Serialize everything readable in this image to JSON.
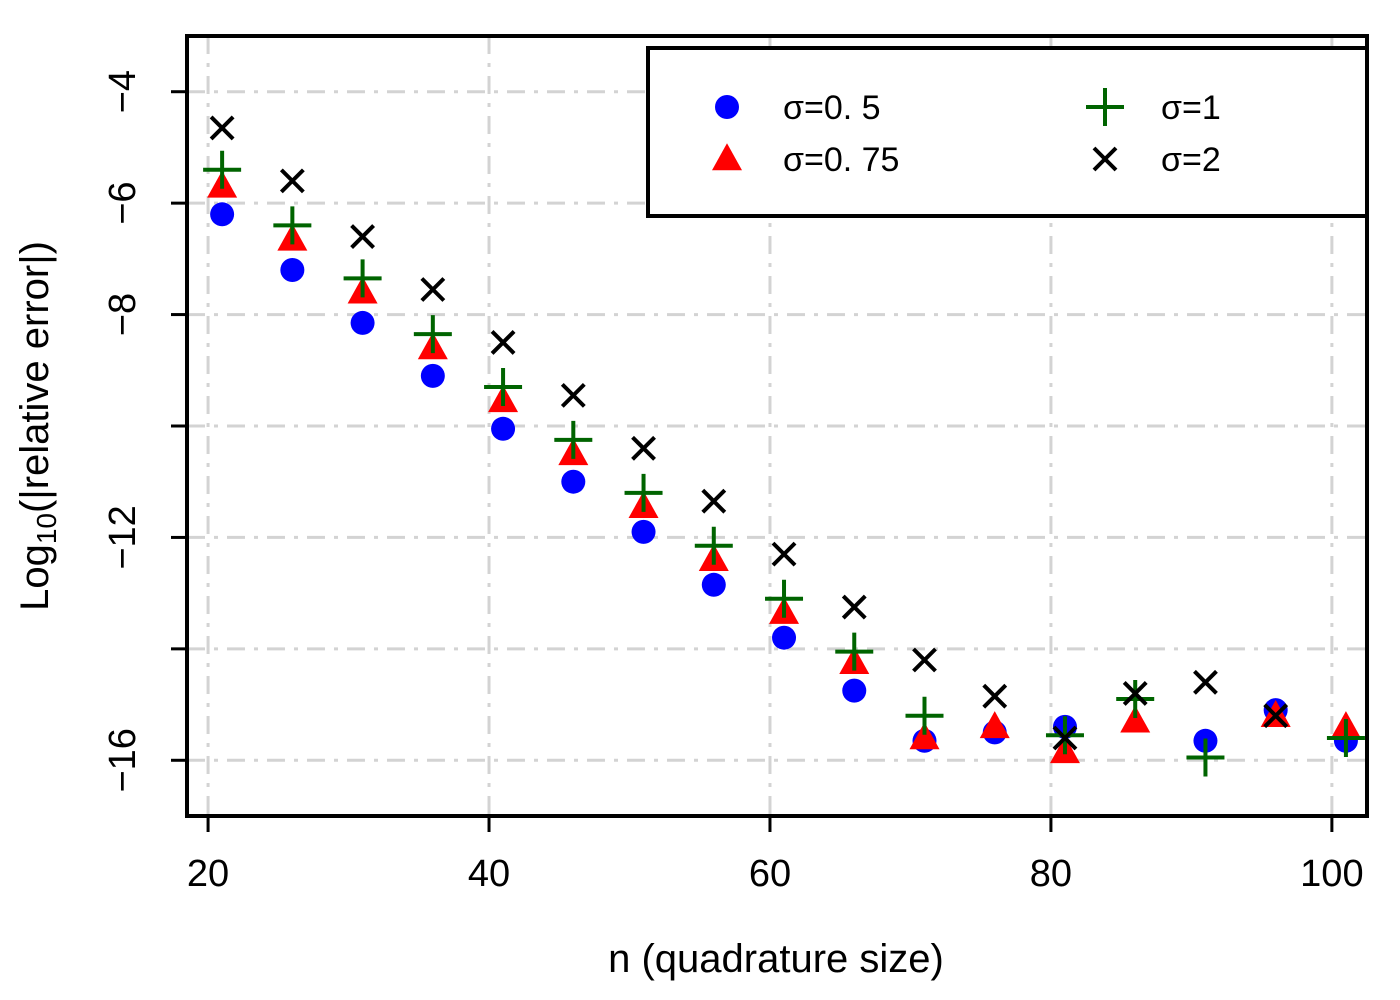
{
  "chart_data": {
    "type": "scatter",
    "title": "",
    "xlabel": "n (quadrature size)",
    "ylabel_prefix": "Log",
    "ylabel_subscript": "10",
    "ylabel_suffix": "(|relative error|)",
    "xlim": [
      18.5,
      102.5
    ],
    "ylim": [
      -17.0,
      -3.0
    ],
    "xticks": [
      20,
      40,
      60,
      80,
      100
    ],
    "xtick_labels": [
      "20",
      "40",
      "60",
      "80",
      "100"
    ],
    "yticks": [
      -4,
      -6,
      -8,
      -10,
      -12,
      -14,
      -16
    ],
    "ytick_labels": [
      "−4",
      "−6",
      "−8",
      "",
      "−12",
      "",
      "−16"
    ],
    "grid": true,
    "legend_position": "top-right",
    "x": [
      21,
      26,
      31,
      36,
      41,
      46,
      51,
      56,
      61,
      66,
      71,
      76,
      81,
      86,
      91,
      96,
      101
    ],
    "series": [
      {
        "name": "σ=0. 5",
        "marker": "circle",
        "color": "#0000ff",
        "values": [
          -6.2,
          -7.2,
          -8.15,
          -9.1,
          -10.05,
          -11.0,
          -11.9,
          -12.85,
          -13.8,
          -14.75,
          -15.65,
          -15.5,
          -15.4,
          null,
          -15.65,
          -15.1,
          -15.65
        ]
      },
      {
        "name": "σ=0. 75",
        "marker": "triangle",
        "color": "#ff0000",
        "values": [
          -5.7,
          -6.65,
          -7.6,
          -8.6,
          -9.55,
          -10.5,
          -11.45,
          -12.4,
          -13.35,
          -14.25,
          -15.6,
          -15.4,
          -15.85,
          -15.3,
          null,
          -15.2,
          -15.4
        ]
      },
      {
        "name": "σ=1",
        "marker": "plus",
        "color": "#006400",
        "values": [
          -5.4,
          -6.4,
          -7.35,
          -8.35,
          -9.3,
          -10.25,
          -11.2,
          -12.15,
          -13.1,
          -14.05,
          -15.2,
          null,
          -15.55,
          -14.9,
          -15.95,
          null,
          -15.6
        ]
      },
      {
        "name": "σ=2",
        "marker": "cross",
        "color": "#000000",
        "values": [
          -4.65,
          -5.6,
          -6.6,
          -7.55,
          -8.5,
          -9.45,
          -10.4,
          -11.35,
          -12.3,
          -13.25,
          -14.2,
          -14.85,
          -15.6,
          -14.8,
          -14.6,
          -15.2,
          null
        ]
      }
    ]
  }
}
